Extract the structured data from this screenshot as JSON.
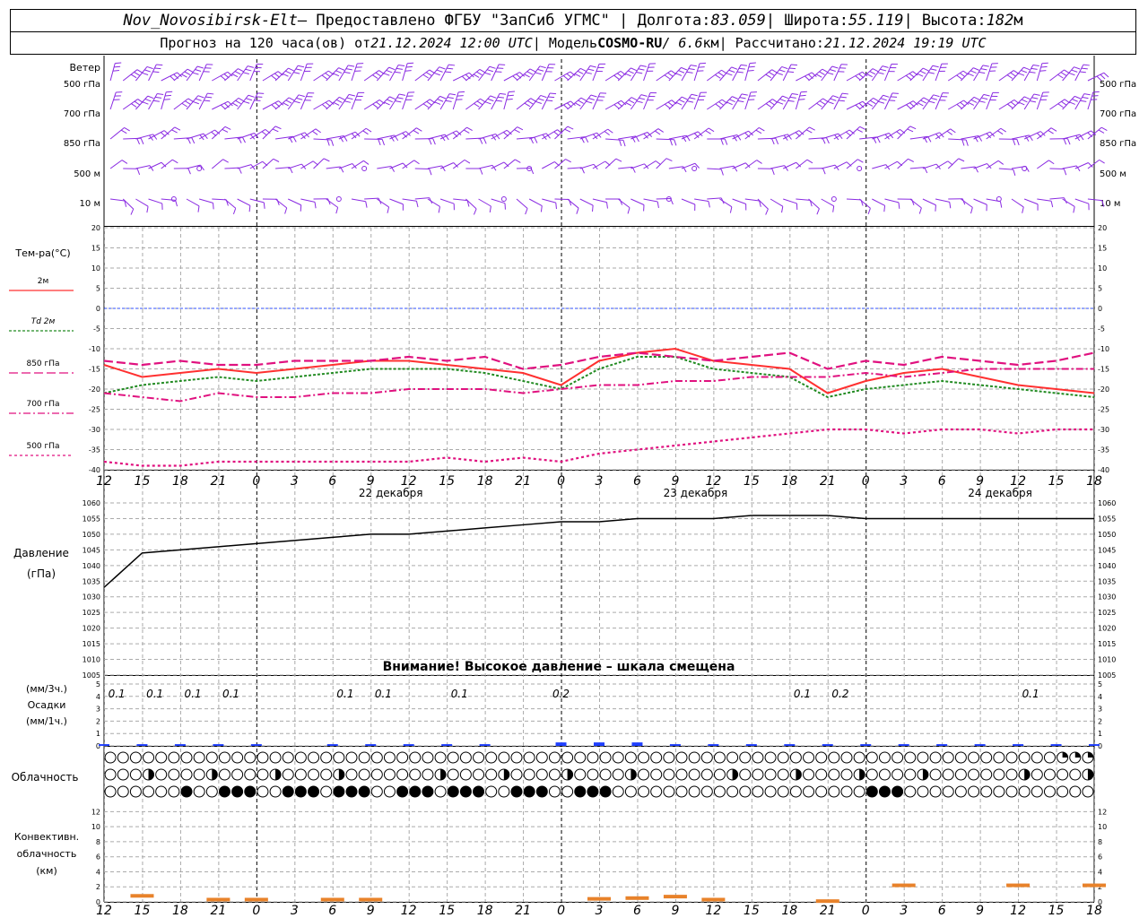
{
  "header": {
    "station": "Nov_Novosibirsk-Elt",
    "provider": " – Предоставлено ФГБУ \"ЗапСиб УГМС\" | Долгота: ",
    "lon": "83.059",
    "lat_label": " | Широта: ",
    "lat": "55.119",
    "alt_label": " | Высота: ",
    "alt": "182",
    "alt_unit": "м",
    "fc_label": "Прогноз на 120 часа(ов) от ",
    "fc_time": "21.12.2024 12:00 UTC",
    "model_label": "  | Модель ",
    "model": "COSMO-RU",
    "model_res": " / 6.6",
    "model_res_unit": "км",
    "calc_label": " | Рассчитано: ",
    "calc_time": "21.12.2024 19:19 UTC"
  },
  "wind_panel": {
    "title": "Ветер",
    "levels": [
      "500 гПа",
      "700 гПа",
      "850 гПа",
      "500 м",
      "10 м"
    ],
    "barb_color": "#8a2be2"
  },
  "temp_panel": {
    "title": "Тем-ра(°C)",
    "legend": [
      {
        "label": "2м",
        "color": "#ff3030",
        "style": "solid"
      },
      {
        "label": "Td  2м",
        "color": "#228b22",
        "style": "dashed"
      },
      {
        "label": "850 гПа",
        "color": "#e0117f",
        "style": "longdash"
      },
      {
        "label": "700 гПа",
        "color": "#e0117f",
        "style": "dashdot"
      },
      {
        "label": "500 гПа",
        "color": "#e0117f",
        "style": "dotted"
      }
    ],
    "ticks": [
      "20",
      "15",
      "10",
      "5",
      "0",
      "-5",
      "-10",
      "-15",
      "-20",
      "-25",
      "-30",
      "-35",
      "-40"
    ]
  },
  "pressure_panel": {
    "title": "Давление",
    "unit": "(гПа)",
    "ticks": [
      "1060",
      "1055",
      "1050",
      "1045",
      "1040",
      "1035",
      "1030",
      "1025",
      "1020",
      "1015",
      "1010",
      "1005"
    ],
    "warning": "Внимание! Высокое давление – шкала смещена"
  },
  "precip_panel": {
    "unit3": "(мм/3ч.)",
    "title": "Осадки",
    "unit1": "(мм/1ч.)",
    "ticks": [
      "5",
      "4",
      "3",
      "2",
      "1",
      "0"
    ],
    "labels": [
      {
        "hour": 1,
        "text": "0.1"
      },
      {
        "hour": 4,
        "text": "0.1"
      },
      {
        "hour": 7,
        "text": "0.1"
      },
      {
        "hour": 10,
        "text": "0.1"
      },
      {
        "hour": 19,
        "text": "0.1"
      },
      {
        "hour": 22,
        "text": "0.1"
      },
      {
        "hour": 28,
        "text": "0.1"
      },
      {
        "hour": 36,
        "text": "0.2"
      },
      {
        "hour": 55,
        "text": "0.1"
      },
      {
        "hour": 58,
        "text": "0.2"
      },
      {
        "hour": 73,
        "text": "0.1"
      }
    ],
    "bar_color": "#1f3fff"
  },
  "cloud_panel": {
    "title": "Облачность"
  },
  "conv_panel": {
    "title1": "Конвективн.",
    "title2": "облачность",
    "unit": "(км)",
    "ticks": [
      "12",
      "10",
      "8",
      "6",
      "4",
      "2",
      "0"
    ],
    "bar_color": "#e8822a"
  },
  "time_axis": {
    "top_hours": [
      "12",
      "15",
      "18",
      "21",
      "0",
      "3",
      "6",
      "9",
      "12",
      "15",
      "18",
      "21",
      "0",
      "3",
      "6",
      "9",
      "12",
      "15",
      "18",
      "21",
      "0",
      "3",
      "6",
      "9",
      "12",
      "15",
      "18"
    ],
    "days": [
      "22 декабря",
      "23 декабря",
      "24 декабря"
    ]
  },
  "chart_data": {
    "type": "line",
    "x_hours": [
      0,
      3,
      6,
      9,
      12,
      15,
      18,
      21,
      24,
      27,
      30,
      33,
      36,
      39,
      42,
      45,
      48,
      51,
      54,
      57,
      60,
      63,
      66,
      69,
      72,
      75,
      78
    ],
    "series": [
      {
        "name": "2м",
        "values": [
          -14,
          -17,
          -16,
          -15,
          -16,
          -15,
          -14,
          -13,
          -13,
          -14,
          -15,
          -16,
          -19,
          -13,
          -11,
          -10,
          -13,
          -14,
          -15,
          -21,
          -18,
          -16,
          -15,
          -17,
          -19,
          -20,
          -21
        ]
      },
      {
        "name": "Td  2м",
        "values": [
          -21,
          -19,
          -18,
          -17,
          -18,
          -17,
          -16,
          -15,
          -15,
          -15,
          -16,
          -18,
          -20,
          -15,
          -12,
          -12,
          -15,
          -16,
          -17,
          -22,
          -20,
          -19,
          -18,
          -19,
          -20,
          -21,
          -22
        ]
      },
      {
        "name": "850 гПа",
        "values": [
          -13,
          -14,
          -13,
          -14,
          -14,
          -13,
          -13,
          -13,
          -12,
          -13,
          -12,
          -15,
          -14,
          -12,
          -11,
          -12,
          -13,
          -12,
          -11,
          -15,
          -13,
          -14,
          -12,
          -13,
          -14,
          -13,
          -11
        ]
      },
      {
        "name": "700 гПа",
        "values": [
          -21,
          -22,
          -23,
          -21,
          -22,
          -22,
          -21,
          -21,
          -20,
          -20,
          -20,
          -21,
          -20,
          -19,
          -19,
          -18,
          -18,
          -17,
          -17,
          -17,
          -16,
          -17,
          -16,
          -15,
          -15,
          -15,
          -15
        ]
      },
      {
        "name": "500 гПа",
        "values": [
          -38,
          -39,
          -39,
          -38,
          -38,
          -38,
          -38,
          -38,
          -38,
          -37,
          -38,
          -37,
          -38,
          -36,
          -35,
          -34,
          -33,
          -32,
          -31,
          -30,
          -30,
          -31,
          -30,
          -30,
          -31,
          -30,
          -30
        ]
      },
      {
        "name": "Давление",
        "values": [
          1033,
          1044,
          1045,
          1046,
          1047,
          1048,
          1049,
          1050,
          1050,
          1051,
          1052,
          1053,
          1054,
          1054,
          1055,
          1055,
          1055,
          1056,
          1056,
          1056,
          1055,
          1055,
          1055,
          1055,
          1055,
          1055,
          1055
        ]
      }
    ],
    "precip_3h": [
      0.1,
      0.1,
      0.1,
      0.1,
      0.1,
      0,
      0.1,
      0.1,
      0.1,
      0.1,
      0.1,
      0,
      0.2,
      0.2,
      0.2,
      0.1,
      0.1,
      0.1,
      0.1,
      0.1,
      0.1,
      0.1,
      0.1,
      0.1,
      0.1,
      0.1,
      0.1
    ],
    "conv_cloud_km": [
      0,
      0.8,
      0,
      0.3,
      0.3,
      0,
      0.3,
      0.3,
      0,
      0,
      0,
      0,
      0,
      0.4,
      0.5,
      0.7,
      0.3,
      0,
      0,
      0.1,
      0,
      2.2,
      0,
      0,
      2.2,
      0,
      2.2
    ],
    "pressure_ylim": [
      1005,
      1060
    ],
    "temp_ylim": [
      -40,
      20
    ],
    "precip_ylim": [
      0,
      5
    ],
    "conv_ylim": [
      0,
      13
    ]
  }
}
